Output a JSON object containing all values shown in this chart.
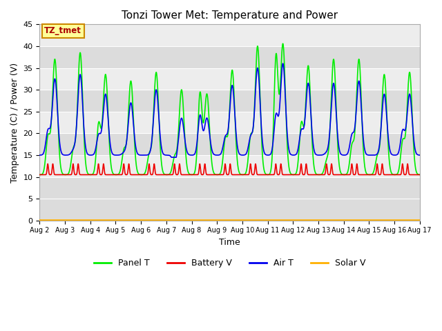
{
  "title": "Tonzi Tower Met: Temperature and Power",
  "xlabel": "Time",
  "ylabel": "Temperature (C) / Power (V)",
  "ylim": [
    0,
    45
  ],
  "yticks": [
    0,
    5,
    10,
    15,
    20,
    25,
    30,
    35,
    40,
    45
  ],
  "xtick_labels": [
    "Aug 2",
    "Aug 3",
    "Aug 4",
    "Aug 5",
    "Aug 6",
    "Aug 7",
    "Aug 8",
    "Aug 9",
    "Aug 10",
    "Aug 11",
    "Aug 12",
    "Aug 13",
    "Aug 14",
    "Aug 15",
    "Aug 16",
    "Aug 17"
  ],
  "panel_T_color": "#00EE00",
  "air_T_color": "#0000EE",
  "battery_V_color": "#EE0000",
  "solar_V_color": "#FFB000",
  "plot_bg_color": "#DCDCDC",
  "legend_label_box": "TZ_tmet",
  "legend_box_facecolor": "#FFFF99",
  "legend_box_edgecolor": "#CC8800",
  "legend_box_text_color": "#AA0000",
  "grid_color": "#FFFFFF",
  "band_color_light": "#E8E8E8",
  "band_color_dark": "#D0D0D0"
}
